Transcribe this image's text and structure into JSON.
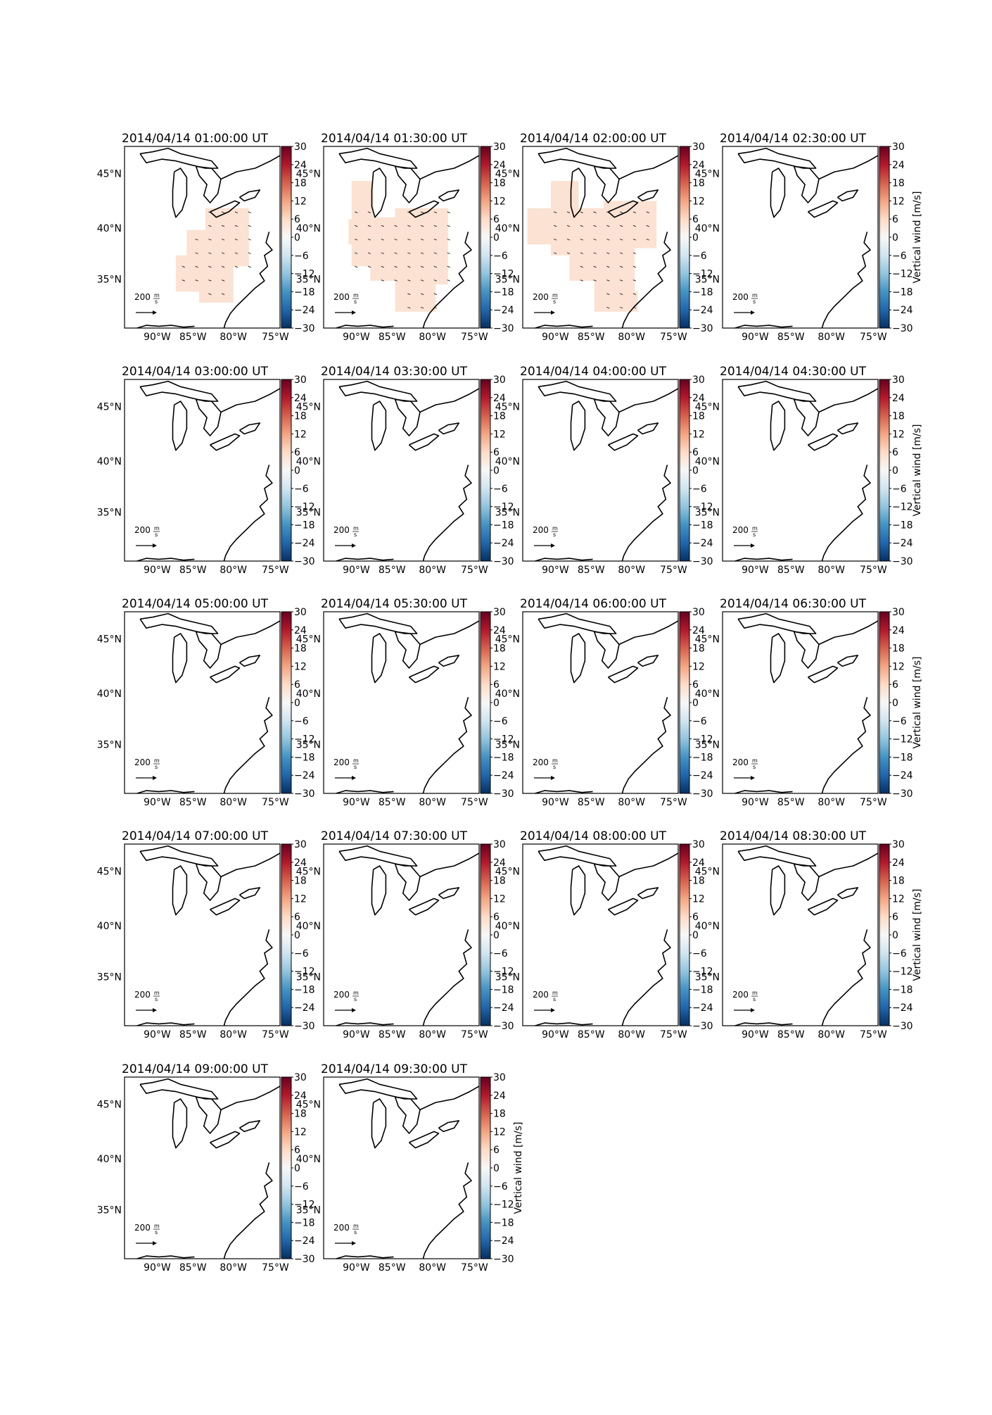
{
  "chart_data": {
    "type": "heatmap",
    "map_region": "Eastern United States / Great Lakes",
    "panels": [
      {
        "title": "2014/04/14 01:00:00 UT",
        "region": "small"
      },
      {
        "title": "2014/04/14 01:30:00 UT",
        "region": "large"
      },
      {
        "title": "2014/04/14 02:00:00 UT",
        "region": "large2"
      },
      {
        "title": "2014/04/14 02:30:00 UT",
        "region": "none"
      },
      {
        "title": "2014/04/14 03:00:00 UT",
        "region": "none"
      },
      {
        "title": "2014/04/14 03:30:00 UT",
        "region": "none"
      },
      {
        "title": "2014/04/14 04:00:00 UT",
        "region": "none"
      },
      {
        "title": "2014/04/14 04:30:00 UT",
        "region": "none"
      },
      {
        "title": "2014/04/14 05:00:00 UT",
        "region": "none"
      },
      {
        "title": "2014/04/14 05:30:00 UT",
        "region": "none"
      },
      {
        "title": "2014/04/14 06:00:00 UT",
        "region": "none"
      },
      {
        "title": "2014/04/14 06:30:00 UT",
        "region": "none"
      },
      {
        "title": "2014/04/14 07:00:00 UT",
        "region": "none"
      },
      {
        "title": "2014/04/14 07:30:00 UT",
        "region": "none"
      },
      {
        "title": "2014/04/14 08:00:00 UT",
        "region": "none"
      },
      {
        "title": "2014/04/14 08:30:00 UT",
        "region": "none"
      },
      {
        "title": "2014/04/14 09:00:00 UT",
        "region": "none"
      },
      {
        "title": "2014/04/14 09:30:00 UT",
        "region": "none"
      }
    ],
    "x_ticks": [
      "90°W",
      "85°W",
      "80°W",
      "75°W"
    ],
    "y_ticks": [
      "45°N",
      "40°N",
      "35°N"
    ],
    "colorbar": {
      "label": "Vertical wind [m/s]",
      "ticks": [
        "30",
        "24",
        "18",
        "12",
        "6",
        "0",
        "−6",
        "−12",
        "−18",
        "−24",
        "−30"
      ],
      "range": [
        -30,
        30
      ],
      "colormap": "RdBu_r",
      "colors": {
        "high": "#67001f",
        "mid_high": "#d6604d",
        "low_pos": "#fbe2d2",
        "zero": "#f7f7f7",
        "low_neg": "#d1e5f0",
        "mid_low": "#4393c3",
        "low": "#053061"
      }
    },
    "patch_value": 3,
    "patch_color": "#fbe2d2",
    "scale_arrow": {
      "value": "200",
      "unit_num": "m",
      "unit_den": "s"
    }
  }
}
